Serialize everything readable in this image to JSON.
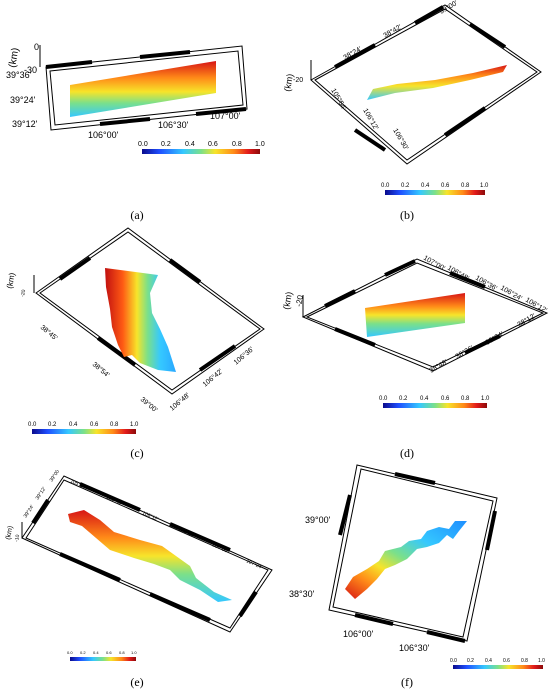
{
  "colors": {
    "frame": "#000000",
    "colormap": [
      "#0a0a8c",
      "#1f4fff",
      "#35c8ff",
      "#7be08a",
      "#f7e42a",
      "#ff8a18",
      "#e21b1b",
      "#8c0a0a"
    ]
  },
  "colorbar": {
    "ticks": [
      "0.0",
      "0.2",
      "0.4",
      "0.6",
      "0.8",
      "1.0"
    ]
  },
  "panels": {
    "a": {
      "caption": "(a)",
      "zlabel": "(km)",
      "z_ticks": [
        "0",
        "-30"
      ],
      "lat_ticks": [
        "39°36'",
        "39°24'",
        "39°12'"
      ],
      "lon_ticks": [
        "106°00'",
        "106°30'",
        "107°00'"
      ]
    },
    "b": {
      "caption": "(b)",
      "zlabel": "(km)",
      "z_ticks": [
        "-20"
      ],
      "lat_ticks": [
        "39°00'",
        "38°42'",
        "38°24'"
      ],
      "lon_ticks": [
        "105°54'",
        "106°12'",
        "106°30'"
      ]
    },
    "c": {
      "caption": "(c)",
      "zlabel": "(km)",
      "z_ticks": [
        "-20"
      ],
      "lat_ticks": [
        "38°45'",
        "38°54'",
        "39°00'"
      ],
      "lon_ticks": [
        "106°48'",
        "106°42'",
        "106°36'"
      ]
    },
    "d": {
      "caption": "(d)",
      "zlabel": "(km)",
      "z_ticks": [
        "-20"
      ],
      "lat_ticks": [
        "38°12'",
        "38°24'",
        "38°36'",
        "38°48'"
      ],
      "lon_ticks": [
        "107°00'",
        "106°48'",
        "106°36'",
        "106°24'",
        "106°12'"
      ]
    },
    "e": {
      "caption": "(e)",
      "zlabel": "(km)",
      "z_ticks": [
        "-10"
      ],
      "lat_ticks": [
        "39°24'",
        "39°12'",
        "39°00'"
      ],
      "lon_ticks": [
        "105°24'",
        "105°48'",
        "106°12'",
        "106°36'",
        "107°00'",
        "107°24'"
      ]
    },
    "f": {
      "caption": "(f)",
      "lat_ticks": [
        "39°00'",
        "38°30'"
      ],
      "lon_ticks": [
        "106°00'",
        "106°30'"
      ]
    }
  }
}
